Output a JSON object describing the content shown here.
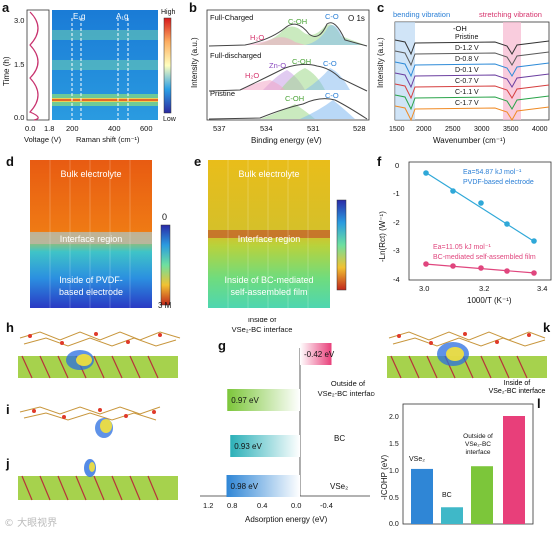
{
  "panels": {
    "a": {
      "label": "a",
      "ylabel": "Time (h)",
      "yticks": [
        "0.0",
        "1.5",
        "3.0"
      ],
      "xticks_voltage": [
        "0.0",
        "1.8"
      ],
      "xlabel_voltage": "Voltage (V)",
      "xticks_raman": [
        "200",
        "400",
        "600"
      ],
      "xlabel_raman": "Raman shift (cm⁻¹)",
      "peak1": "E₁g",
      "peak2": "A₁g",
      "colorbar_high": "High",
      "colorbar_low": "Low"
    },
    "b": {
      "label": "b",
      "tag": "O 1s",
      "ylabel": "Intensity (a.u.)",
      "xlabel": "Binding energy (eV)",
      "xticks": [
        "537",
        "534",
        "531",
        "528"
      ],
      "spectra": [
        {
          "name": "Full-Charged",
          "peaks": [
            "H₂O",
            "C-OH",
            "C-O"
          ]
        },
        {
          "name": "Full-discharged",
          "peaks": [
            "H₂O",
            "Zn-O",
            "C-OH",
            "C-O"
          ]
        },
        {
          "name": "Pristine",
          "peaks": [
            "C-OH",
            "C-O"
          ]
        }
      ]
    },
    "c": {
      "label": "c",
      "ylabel": "Intensity (a.u.)",
      "xlabel": "Wavenumber (cm⁻¹)",
      "xticks": [
        "1500",
        "2000",
        "2500",
        "3000",
        "3500",
        "4000"
      ],
      "bending": "bending vibration",
      "stretching": "stretching vibration",
      "oh": "-OH",
      "curves": [
        "Pristine",
        "D-1.2 V",
        "D-0.8 V",
        "D-0.1 V",
        "C-0.7 V",
        "C-1.1 V",
        "C-1.7 V"
      ],
      "colors": [
        "#333333",
        "#5a5a5a",
        "#2e8bd8",
        "#6b3fa0",
        "#d63f3f",
        "#2aa44a",
        "#f08a24"
      ]
    },
    "d": {
      "label": "d",
      "top": "Bulk electrolyte",
      "middle": "Interface region",
      "bottom": "Inside of PVDF-based electrode",
      "cb_top": "0",
      "cb_bottom": "3 M"
    },
    "e": {
      "label": "e",
      "top": "Bulk electrolyte",
      "middle": "Interface region",
      "bottom": "Inside of BC-mediated self-assembled film"
    },
    "f": {
      "label": "f",
      "ylabel": "-Ln(Rct) (W⁻¹)",
      "xlabel": "1000/T (K⁻¹)",
      "yticks": [
        "0",
        "-1",
        "-2",
        "-3",
        "-4"
      ],
      "xticks": [
        "3.0",
        "3.2",
        "3.4"
      ],
      "ea1": "Ea=54.87 kJ mol⁻¹",
      "ea1_desc": "PVDF-based electrode",
      "ea2": "Ea=11.05 kJ mol⁻¹",
      "ea2_desc": "BC-mediated self-assembled film"
    },
    "g": {
      "label": "g",
      "xlabel": "Adsorption energy (eV)",
      "xticks": [
        "1.2",
        "0.8",
        "0.4",
        "0.0",
        "-0.4"
      ],
      "bars": [
        {
          "name": "Inside of VSe₂-BC interface",
          "value_text": "-0.42 eV",
          "value": -0.42
        },
        {
          "name": "Outside of VSe₂-BC interface",
          "value_text": "0.97 eV",
          "value": 0.97
        },
        {
          "name": "BC",
          "value_text": "0.93 eV",
          "value": 0.93
        },
        {
          "name": "VSe₂",
          "value_text": "0.98 eV",
          "value": 0.98
        }
      ]
    },
    "h": {
      "label": "h"
    },
    "i": {
      "label": "i"
    },
    "j": {
      "label": "j"
    },
    "k": {
      "label": "k"
    },
    "l": {
      "label": "l",
      "ylabel": "-ICOHP (eV)",
      "yticks": [
        "0.0",
        "0.5",
        "1.0",
        "1.5",
        "2.0"
      ],
      "bars": [
        {
          "name": "VSe₂",
          "value": 1.02,
          "color": "#2f86d6"
        },
        {
          "name": "BC",
          "value": 0.31,
          "color": "#3fb8c8"
        },
        {
          "name": "Outside of VSe₂-BC interface",
          "value": 1.07,
          "color": "#7cc63a"
        },
        {
          "name": "Inside of VSe₂-BC interface",
          "value": 2.0,
          "color": "#e83f7a"
        }
      ]
    }
  },
  "watermark": "© 大眼视界"
}
